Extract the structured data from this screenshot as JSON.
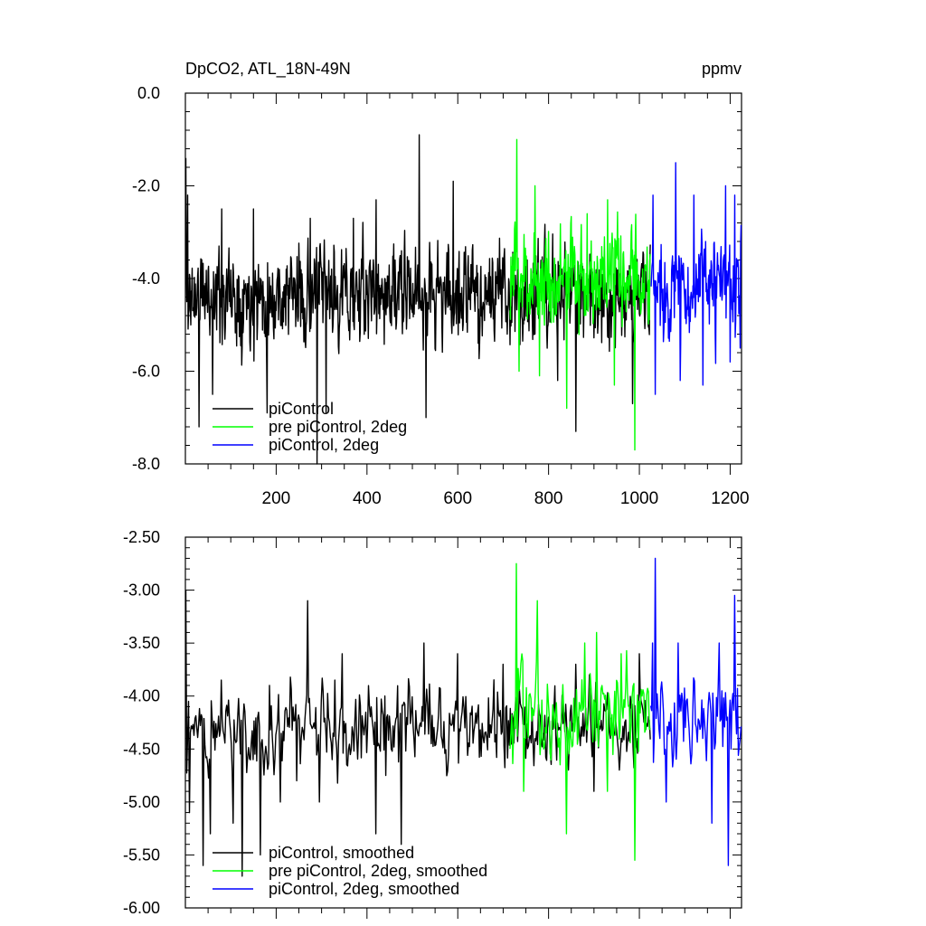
{
  "chart_data": [
    {
      "type": "line",
      "title": "DpCO2, ATL_18N-49N",
      "units": "ppmv",
      "xlim": [
        0,
        1225
      ],
      "ylim": [
        -8.0,
        0.0
      ],
      "xticks": [
        200,
        400,
        600,
        800,
        1000,
        1200
      ],
      "xtick_labels": [
        "200",
        "400",
        "600",
        "800",
        "1000",
        "1200"
      ],
      "yticks": [
        0.0,
        -2.0,
        -4.0,
        -6.0,
        -8.0
      ],
      "ytick_labels": [
        "0.0",
        "-2.0",
        "-4.0",
        "-6.0",
        "-8.0"
      ],
      "legend": {
        "placement": "bottom-left"
      },
      "series": [
        {
          "name": "piControl",
          "color": "#000000",
          "x_start": 1,
          "x_end": 1024,
          "npoints": 1024,
          "mean": -4.35,
          "amplitude": 0.75,
          "seed": 11,
          "anchors": [
            [
              1,
              -1.4
            ],
            [
              3,
              -4.5
            ],
            [
              5,
              -2.2
            ],
            [
              12,
              -5.0
            ],
            [
              30,
              -7.2
            ],
            [
              60,
              -6.5
            ],
            [
              80,
              -2.5
            ],
            [
              150,
              -2.5
            ],
            [
              180,
              -6.9
            ],
            [
              275,
              -2.7
            ],
            [
              290,
              -8.0
            ],
            [
              310,
              -6.9
            ],
            [
              370,
              -2.7
            ],
            [
              420,
              -2.3
            ],
            [
              515,
              -0.9
            ],
            [
              530,
              -7.0
            ],
            [
              590,
              -1.9
            ],
            [
              820,
              -6.2
            ],
            [
              860,
              -7.3
            ],
            [
              985,
              -6.7
            ]
          ]
        },
        {
          "name": "pre piControl, 2deg",
          "color": "#00ff00",
          "x_start": 715,
          "x_end": 1024,
          "npoints": 310,
          "mean": -4.0,
          "amplitude": 0.75,
          "seed": 23,
          "anchors": [
            [
              730,
              -1.0
            ],
            [
              735,
              -6.0
            ],
            [
              770,
              -2.0
            ],
            [
              780,
              -6.1
            ],
            [
              840,
              -6.8
            ],
            [
              885,
              -2.6
            ],
            [
              930,
              -2.3
            ],
            [
              945,
              -6.3
            ],
            [
              990,
              -7.7
            ]
          ]
        },
        {
          "name": "piControl, 2deg",
          "color": "#0000ff",
          "x_start": 1025,
          "x_end": 1224,
          "npoints": 200,
          "mean": -4.2,
          "amplitude": 0.75,
          "seed": 37,
          "anchors": [
            [
              1030,
              -2.2
            ],
            [
              1035,
              -6.5
            ],
            [
              1080,
              -1.5
            ],
            [
              1090,
              -6.2
            ],
            [
              1120,
              -2.2
            ],
            [
              1140,
              -6.3
            ],
            [
              1190,
              -2.0
            ],
            [
              1200,
              -5.8
            ],
            [
              1210,
              -2.2
            ],
            [
              1222,
              -5.5
            ]
          ]
        }
      ]
    },
    {
      "type": "line",
      "xlim": [
        0,
        1225
      ],
      "ylim": [
        -6.0,
        -2.5
      ],
      "yticks": [
        -2.5,
        -3.0,
        -3.5,
        -4.0,
        -4.5,
        -5.0,
        -5.5,
        -6.0
      ],
      "ytick_labels": [
        "-2.50",
        "-3.00",
        "-3.50",
        "-4.00",
        "-4.50",
        "-5.00",
        "-5.50",
        "-6.00"
      ],
      "legend": {
        "placement": "bottom-left"
      },
      "series": [
        {
          "name": "piControl, smoothed",
          "color": "#000000",
          "x_start": 1,
          "x_end": 1024,
          "npoints": 512,
          "mean": -4.3,
          "amplitude": 0.28,
          "seed": 51,
          "anchors": [
            [
              1,
              -3.0
            ],
            [
              10,
              -5.1
            ],
            [
              25,
              -4.3
            ],
            [
              40,
              -5.6
            ],
            [
              55,
              -5.3
            ],
            [
              80,
              -3.85
            ],
            [
              105,
              -5.2
            ],
            [
              125,
              -5.7
            ],
            [
              150,
              -4.6
            ],
            [
              165,
              -5.5
            ],
            [
              185,
              -3.9
            ],
            [
              210,
              -5.0
            ],
            [
              245,
              -4.8
            ],
            [
              270,
              -3.1
            ],
            [
              295,
              -5.0
            ],
            [
              330,
              -3.85
            ],
            [
              345,
              -3.6
            ],
            [
              420,
              -5.3
            ],
            [
              440,
              -4.0
            ],
            [
              475,
              -5.4
            ],
            [
              525,
              -3.5
            ],
            [
              600,
              -3.6
            ],
            [
              700,
              -3.7
            ],
            [
              800,
              -4.2
            ],
            [
              860,
              -3.7
            ],
            [
              900,
              -4.9
            ],
            [
              960,
              -4.4
            ],
            [
              1000,
              -3.6
            ]
          ]
        },
        {
          "name": "pre piControl, 2deg, smoothed",
          "color": "#00ff00",
          "x_start": 715,
          "x_end": 1024,
          "npoints": 155,
          "mean": -4.15,
          "amplitude": 0.3,
          "seed": 63,
          "anchors": [
            [
              730,
              -2.75
            ],
            [
              745,
              -4.9
            ],
            [
              775,
              -3.1
            ],
            [
              790,
              -4.5
            ],
            [
              840,
              -5.3
            ],
            [
              880,
              -3.5
            ],
            [
              905,
              -3.4
            ],
            [
              930,
              -4.9
            ],
            [
              960,
              -3.6
            ],
            [
              990,
              -5.55
            ],
            [
              1005,
              -4.0
            ]
          ]
        },
        {
          "name": "piControl, 2deg, smoothed",
          "color": "#0000ff",
          "x_start": 1025,
          "x_end": 1224,
          "npoints": 100,
          "mean": -4.2,
          "amplitude": 0.3,
          "seed": 79,
          "anchors": [
            [
              1030,
              -3.5
            ],
            [
              1035,
              -2.7
            ],
            [
              1045,
              -4.4
            ],
            [
              1060,
              -5.0
            ],
            [
              1085,
              -3.5
            ],
            [
              1140,
              -4.4
            ],
            [
              1160,
              -5.2
            ],
            [
              1175,
              -3.5
            ],
            [
              1195,
              -5.6
            ],
            [
              1202,
              -4.5
            ],
            [
              1210,
              -3.05
            ],
            [
              1222,
              -4.4
            ]
          ]
        }
      ]
    }
  ]
}
